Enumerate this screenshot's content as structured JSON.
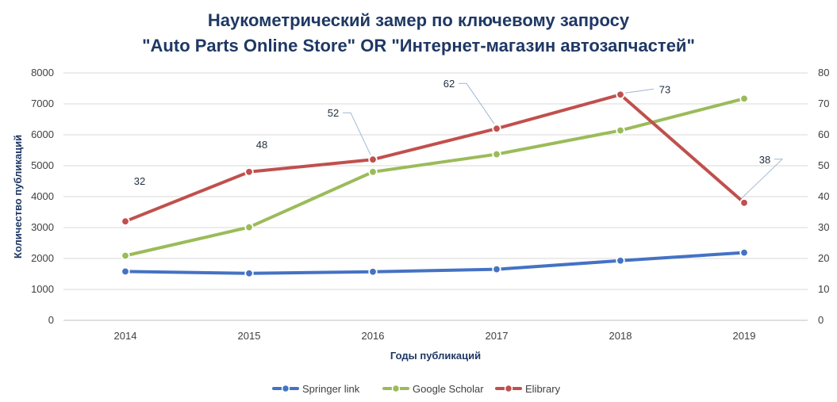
{
  "chart_data": {
    "type": "line",
    "title_line1": "Наукометрический замер по ключевому запросу",
    "title_line2": "\"Auto Parts Online Store\" OR \"Интернет-магазин автозапчастей\"",
    "xlabel": "Годы публикаций",
    "ylabel": "Количество публикаций",
    "categories": [
      "2014",
      "2015",
      "2016",
      "2017",
      "2018",
      "2019"
    ],
    "ylim": [
      0,
      8000
    ],
    "y_ticks": [
      "0",
      "1000",
      "2000",
      "3000",
      "4000",
      "5000",
      "6000",
      "7000",
      "8000"
    ],
    "y2lim": [
      0,
      80
    ],
    "y2_ticks": [
      "0",
      "10",
      "20",
      "30",
      "40",
      "50",
      "60",
      "70",
      "80"
    ],
    "grid": "horizontal",
    "legend_position": "bottom",
    "series": [
      {
        "name": "Springer link",
        "axis": "left",
        "color": "#4472c4",
        "values": [
          1580,
          1520,
          1570,
          1650,
          1930,
          2190
        ]
      },
      {
        "name": "Google Scholar",
        "axis": "left",
        "color": "#9bbb59",
        "values": [
          2090,
          3010,
          4800,
          5370,
          6140,
          7170
        ]
      },
      {
        "name": "Elibrary",
        "axis": "right",
        "color": "#c0504d",
        "values": [
          32,
          48,
          52,
          62,
          73,
          38
        ],
        "data_labels": [
          "32",
          "48",
          "52",
          "62",
          "73",
          "38"
        ]
      }
    ]
  }
}
